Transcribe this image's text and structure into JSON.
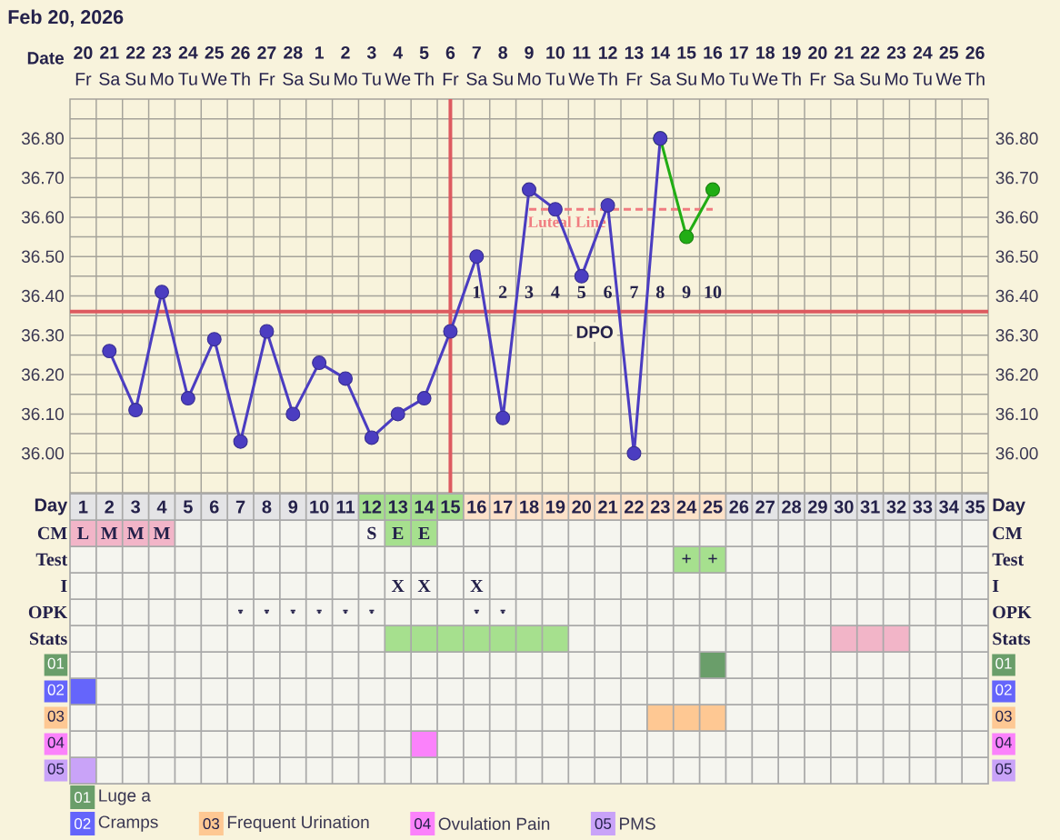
{
  "chart_data": [
    {
      "type": "line",
      "title": "Feb 20, 2026",
      "xlabel": "Date",
      "categories": [
        "**20** Fr",
        "**21** Sa",
        "**22** Su",
        "**23** Mo",
        "**24** Tu",
        "**25** We",
        "**26** Th",
        "**27** Fr",
        "**28** Sa",
        "**1** Su",
        "**2** Mo",
        "**3** Tu",
        "**4** We",
        "**5** Th",
        "**6** Fr",
        "**7** Sa",
        "**8** Su",
        "**9** Mo",
        "**10** Tu",
        "**11** We",
        "**12** Th",
        "**13** Fr",
        "**14** Sa",
        "**15** Su",
        "**16** Mo",
        "**17** Tu",
        "**18** We",
        "**19** Th",
        "**20** Fr",
        "**21** Sa",
        "**22** Su",
        "**23** Mo",
        "**24** Tu",
        "**25** We",
        "**26** Th"
      ],
      "ylim": [
        35.9,
        36.9
      ],
      "yticks": [
        {
          "value": 36.0,
          "label": "36.00"
        },
        {
          "value": 36.1,
          "label": "36.10"
        },
        {
          "value": 36.2,
          "label": "36.20"
        },
        {
          "value": 36.3,
          "label": "36.30"
        },
        {
          "value": 36.4,
          "label": "36.40"
        },
        {
          "value": 36.5,
          "label": "36.50"
        },
        {
          "value": 36.6,
          "label": "36.60"
        },
        {
          "value": 36.7,
          "label": "36.70"
        },
        {
          "value": 36.8,
          "label": "36.80"
        }
      ],
      "y2lim": [
        35.9,
        36.9
      ],
      "y2ticks": [
        {
          "value": 36.0,
          "label": "36.00"
        },
        {
          "value": 36.1,
          "label": "36.10"
        },
        {
          "value": 36.2,
          "label": "36.20"
        },
        {
          "value": 36.3,
          "label": "36.30"
        },
        {
          "value": 36.4,
          "label": "36.40"
        },
        {
          "value": 36.5,
          "label": "36.50"
        },
        {
          "value": 36.6,
          "label": "36.60"
        },
        {
          "value": 36.7,
          "label": "36.70"
        },
        {
          "value": 36.8,
          "label": "36.80"
        }
      ],
      "grid": true,
      "marker": "circle",
      "series": [
        {
          "color": "#4b3dc1",
          "values": [
            null,
            36.26,
            36.11,
            36.41,
            36.14,
            36.29,
            36.03,
            36.31,
            36.1,
            36.23,
            36.19,
            36.04,
            36.1,
            36.14,
            36.31,
            36.5,
            36.09,
            36.67,
            36.62,
            36.45,
            36.63,
            36.0,
            36.8,
            null,
            null,
            null,
            null,
            null,
            null,
            null,
            null,
            null,
            null,
            null,
            null
          ]
        },
        {
          "color": "#21ad14",
          "values": [
            null,
            null,
            null,
            null,
            null,
            null,
            null,
            null,
            null,
            null,
            null,
            null,
            null,
            null,
            null,
            null,
            null,
            null,
            null,
            null,
            null,
            null,
            36.8,
            36.55,
            36.67,
            null,
            null,
            null,
            null,
            null,
            null,
            null,
            null,
            null,
            null
          ]
        },
        {
          "name": "Luteal Line",
          "color": "#f07c80",
          "line_style": "dashed",
          "marker": "none",
          "values": [
            null,
            null,
            null,
            null,
            null,
            null,
            null,
            null,
            null,
            null,
            null,
            null,
            null,
            null,
            null,
            null,
            null,
            36.62,
            36.62,
            36.62,
            36.62,
            36.62,
            36.62,
            36.62,
            36.62,
            null,
            null,
            null,
            null,
            null,
            null,
            null,
            null,
            null,
            null
          ]
        }
      ],
      "ref_lines": [
        {
          "axis": "x",
          "value": "**6** Fr",
          "color": "#dd5a60"
        },
        {
          "axis": "y",
          "value": 36.36,
          "color": "#dd5a60"
        }
      ],
      "annotations": [
        "1",
        "2",
        "3",
        "4",
        "5",
        "6",
        "7",
        "8",
        "9",
        "10",
        "DPO"
      ]
    },
    {
      "type": "bar",
      "orientation": "horizontal",
      "categories": [
        "Day",
        "CM",
        "Test",
        "I",
        "OPK",
        "Stats",
        "01",
        "02",
        "03",
        "04",
        "05"
      ],
      "y2_categories": [
        "Day",
        "CM",
        "Test",
        "I",
        "OPK",
        "Stats",
        "01",
        "02",
        "03",
        "04",
        "05"
      ],
      "xlim": [
        0.5,
        35.5
      ],
      "xticks": [
        1,
        2,
        3,
        4,
        5,
        6,
        7,
        8,
        9,
        10,
        11,
        12,
        13,
        14,
        15,
        16,
        17,
        18,
        19,
        20,
        21,
        22,
        23,
        24,
        25,
        26,
        27,
        28,
        29,
        30,
        31,
        32,
        33,
        34,
        35
      ],
      "grid": true,
      "legend": "bottom",
      "series": [
        {
          "color": "#e4e4e6",
          "values": [
            11,
            null,
            null,
            null,
            null,
            null,
            null,
            null,
            null,
            null,
            null
          ],
          "base": [
            0.5,
            null,
            null,
            null,
            null,
            null,
            null,
            null,
            null,
            null,
            null
          ]
        },
        {
          "color": "#e4e4e6",
          "values": [
            10,
            null,
            null,
            null,
            null,
            null,
            null,
            null,
            null,
            null,
            null
          ],
          "base": [
            25.5,
            null,
            null,
            null,
            null,
            null,
            null,
            null,
            null,
            null,
            null
          ]
        },
        {
          "color": "#a6e08e",
          "values": [
            4,
            2,
            2,
            null,
            null,
            7,
            null,
            null,
            null,
            null,
            null
          ],
          "base": [
            11.5,
            12.5,
            23.5,
            null,
            null,
            12.5,
            null,
            null,
            null,
            null,
            null
          ]
        },
        {
          "color": "#fde2c9",
          "values": [
            10,
            null,
            null,
            null,
            null,
            null,
            null,
            null,
            null,
            null,
            null
          ],
          "base": [
            15.5,
            null,
            null,
            null,
            null,
            null,
            null,
            null,
            null,
            null,
            null
          ]
        },
        {
          "color": "#f2b5c8",
          "values": [
            null,
            4,
            null,
            null,
            null,
            3,
            null,
            null,
            null,
            null,
            null
          ],
          "base": [
            null,
            0.5,
            null,
            null,
            null,
            29.5,
            null,
            null,
            null,
            null,
            null
          ]
        },
        {
          "name": "Luge a",
          "color": "#6a9e6a",
          "values": [
            null,
            null,
            null,
            null,
            null,
            null,
            1,
            null,
            null,
            null,
            null
          ],
          "base": [
            null,
            null,
            null,
            null,
            null,
            null,
            24.5,
            null,
            null,
            null,
            null
          ]
        },
        {
          "name": "Cramps",
          "color": "#6565fb",
          "values": [
            null,
            null,
            null,
            null,
            null,
            null,
            null,
            1,
            null,
            null,
            null
          ],
          "base": [
            null,
            null,
            null,
            null,
            null,
            null,
            null,
            0.5,
            null,
            null,
            null
          ]
        },
        {
          "name": "Frequent Urination",
          "color": "#fec893",
          "values": [
            null,
            null,
            null,
            null,
            null,
            null,
            null,
            null,
            3,
            null,
            null
          ],
          "base": [
            null,
            null,
            null,
            null,
            null,
            null,
            null,
            null,
            22.5,
            null,
            null
          ]
        },
        {
          "name": "Ovulation Pain",
          "color": "#fb82fb",
          "values": [
            null,
            null,
            null,
            null,
            null,
            null,
            null,
            null,
            null,
            1,
            null
          ],
          "base": [
            null,
            null,
            null,
            null,
            null,
            null,
            null,
            null,
            null,
            13.5,
            null
          ]
        },
        {
          "name": "PMS",
          "color": "#c9a3f8",
          "values": [
            null,
            null,
            null,
            null,
            null,
            null,
            null,
            null,
            null,
            null,
            1
          ],
          "base": [
            null,
            null,
            null,
            null,
            null,
            null,
            null,
            null,
            null,
            null,
            0.5
          ]
        },
        {
          "type": "scatter",
          "color": "#24214a",
          "marker": "circle",
          "x": [
            "CM"
          ],
          "values": [
            12
          ],
          "value_labels": [
            "S"
          ]
        },
        {
          "type": "scatter",
          "color": "#24214a",
          "marker": "circle",
          "x": [
            "I",
            "I",
            "I"
          ],
          "values": [
            13,
            14,
            16
          ],
          "value_labels": [
            "X",
            "X",
            "X"
          ]
        },
        {
          "type": "scatter",
          "color": "#24214a",
          "marker": "circle",
          "x": [
            "OPK",
            "OPK",
            "OPK",
            "OPK",
            "OPK",
            "OPK",
            "OPK",
            "OPK"
          ],
          "values": [
            7,
            8,
            9,
            10,
            11,
            12,
            16,
            17
          ],
          "value_labels": [
            "-",
            "-",
            "-",
            "-",
            "-",
            "-",
            "-",
            "-"
          ]
        }
      ],
      "annotations": [
        {
          "text": "L",
          "x": 1,
          "y": "CM"
        },
        {
          "text": "M",
          "x": 2,
          "y": "CM"
        },
        {
          "text": "M",
          "x": 3,
          "y": "CM"
        },
        {
          "text": "M",
          "x": 4,
          "y": "CM"
        },
        {
          "text": "E",
          "x": 13,
          "y": "CM"
        },
        {
          "text": "E",
          "x": 14,
          "y": "CM"
        },
        {
          "text": "+",
          "x": 24,
          "y": "Test"
        },
        {
          "text": "+",
          "x": 25,
          "y": "Test"
        }
      ]
    }
  ]
}
